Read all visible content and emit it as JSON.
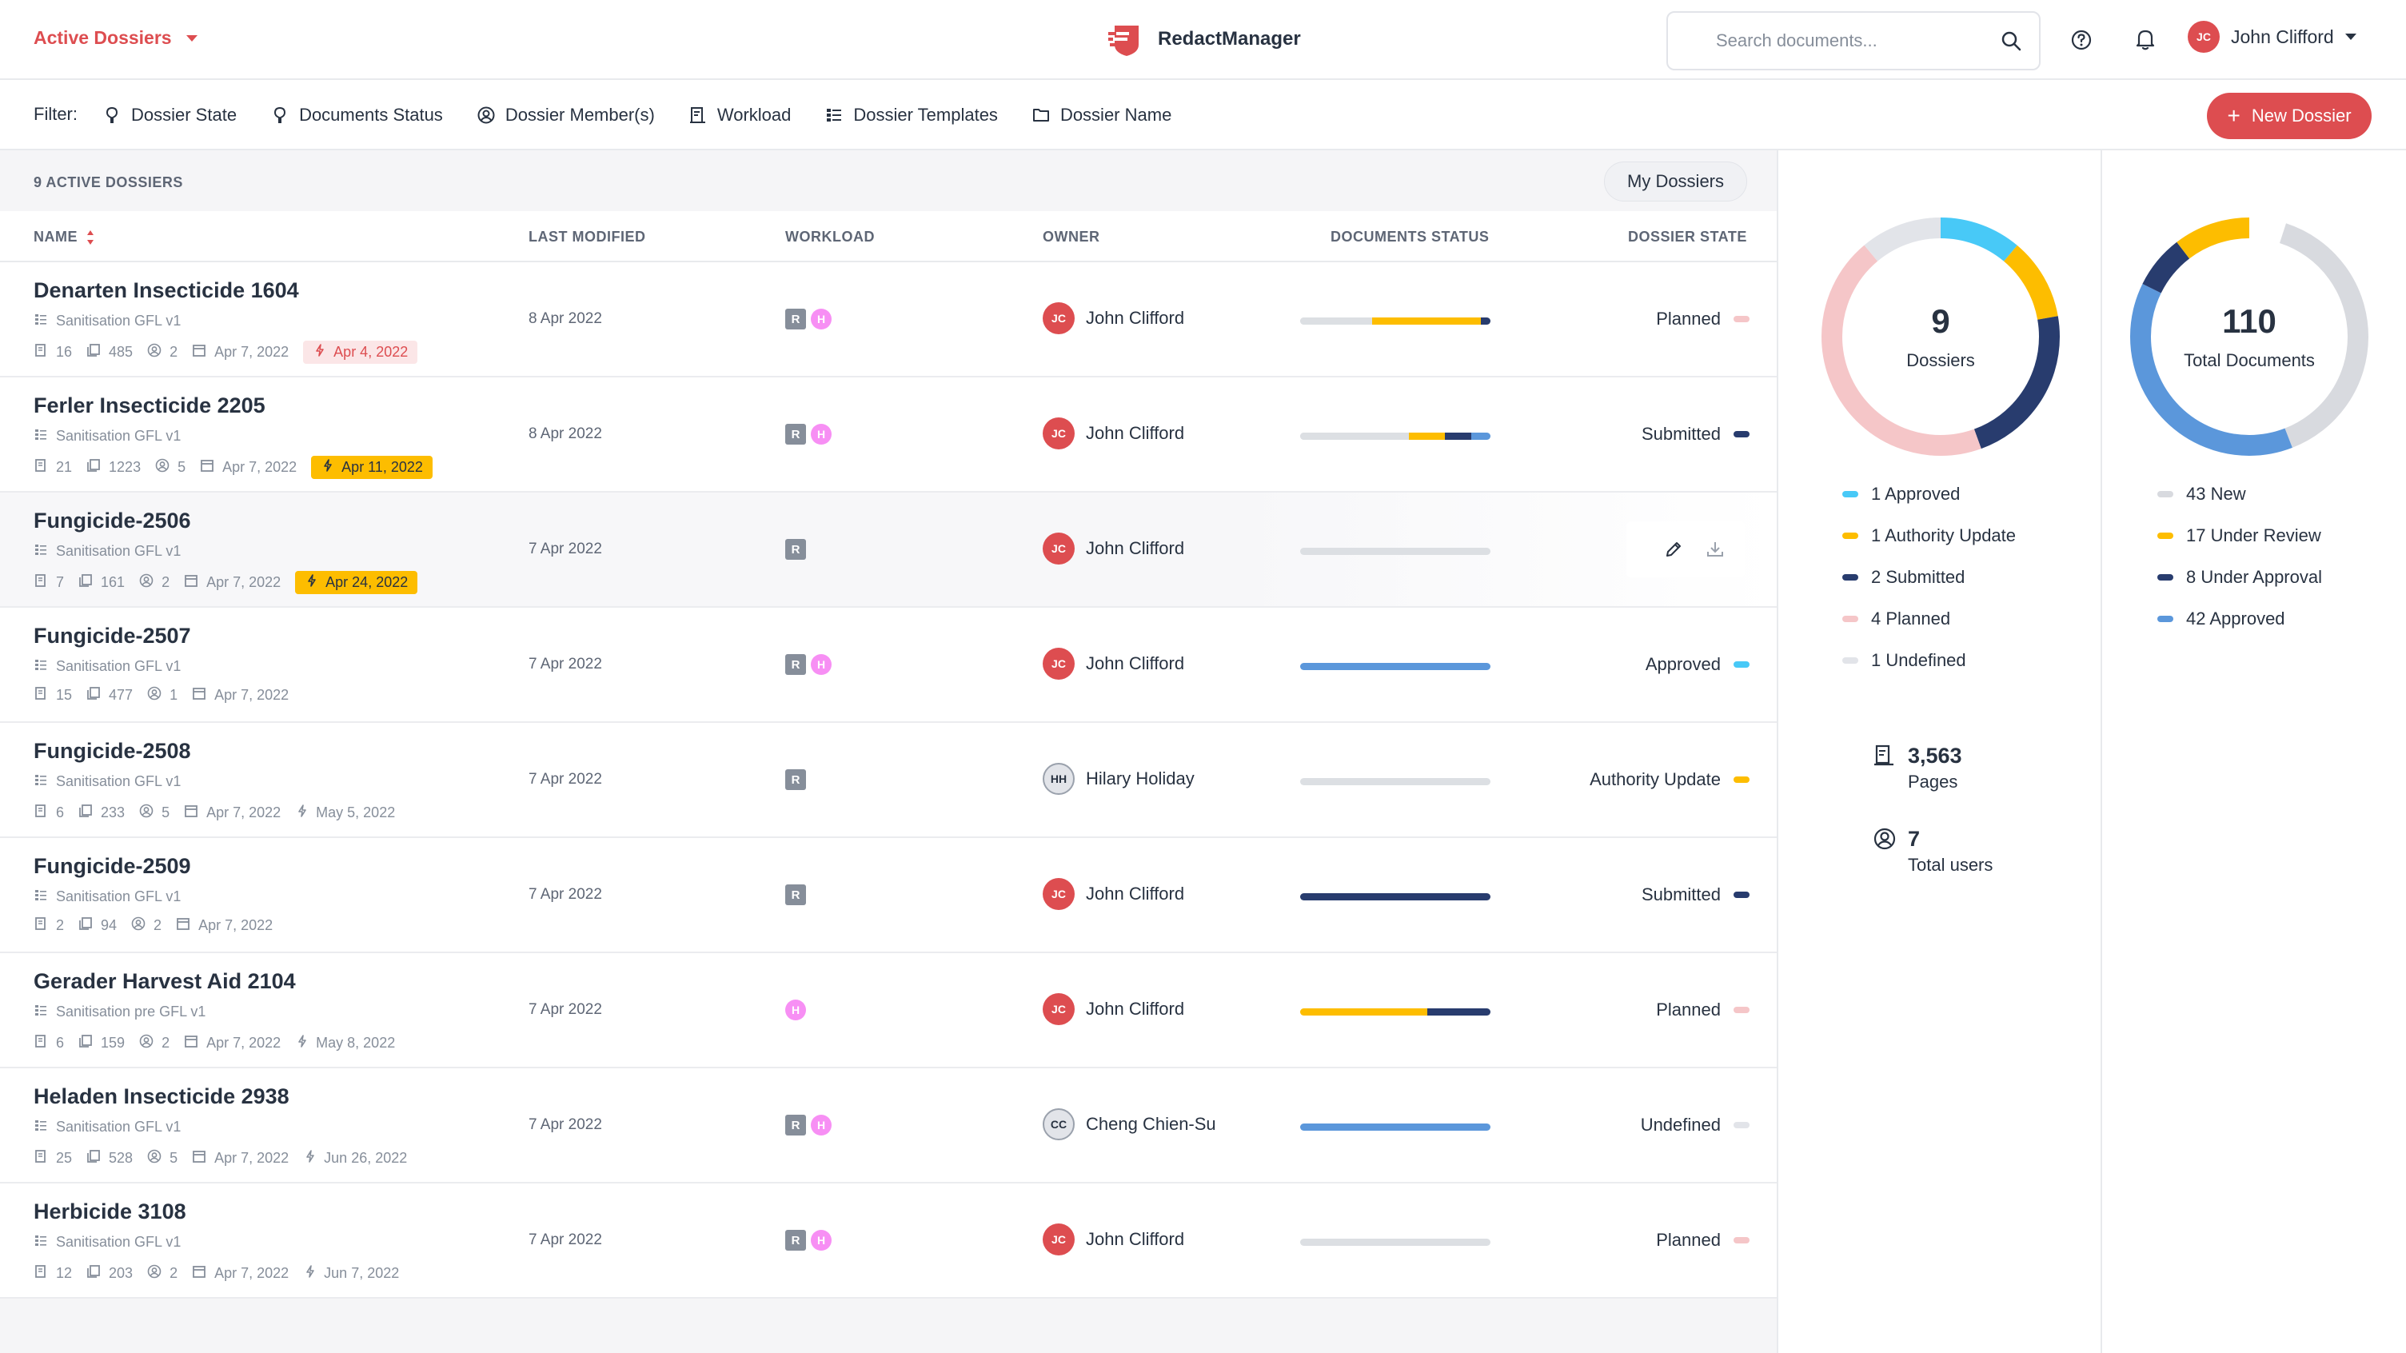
{
  "header": {
    "dossiers_menu": "Active Dossiers",
    "app_name": "RedactManager",
    "search_placeholder": "Search documents...",
    "user_initials": "JC",
    "user_name": "John Clifford"
  },
  "filter_bar": {
    "label": "Filter:",
    "filters": [
      {
        "label": "Dossier State",
        "icon": "pin-icon"
      },
      {
        "label": "Documents Status",
        "icon": "pin-icon"
      },
      {
        "label": "Dossier Member(s)",
        "icon": "user-circle-icon"
      },
      {
        "label": "Workload",
        "icon": "workload-icon"
      },
      {
        "label": "Dossier Templates",
        "icon": "template-list-icon"
      },
      {
        "label": "Dossier Name",
        "icon": "folder-icon"
      }
    ],
    "new_dossier_label": "New Dossier"
  },
  "list": {
    "count_label": "9 ACTIVE DOSSIERS",
    "my_dossiers_label": "My Dossiers",
    "columns": [
      "NAME",
      "LAST MODIFIED",
      "WORKLOAD",
      "OWNER",
      "DOCUMENTS STATUS",
      "DOSSIER STATE"
    ],
    "rows": [
      {
        "name": "Denarten Insecticide 1604",
        "template": "Sanitisation GFL v1",
        "docs": "16",
        "pages": "485",
        "members": "2",
        "created": "Apr 7, 2022",
        "due": "Apr 4, 2022",
        "due_style": "red",
        "modified": "8 Apr 2022",
        "workload": [
          "R",
          "H"
        ],
        "owner_initials": "JC",
        "owner": "John Clifford",
        "owner_style": "red",
        "doc_status": [
          {
            "color": "#dcdfe3",
            "value": 0.38
          },
          {
            "color": "#fdbd00",
            "value": 0.57
          },
          {
            "color": "#283c6e",
            "value": 0.05
          }
        ],
        "state": "Planned",
        "state_color": "#f5c6c8"
      },
      {
        "name": "Ferler Insecticide 2205",
        "template": "Sanitisation GFL v1",
        "docs": "21",
        "pages": "1223",
        "members": "5",
        "created": "Apr 7, 2022",
        "due": "Apr 11, 2022",
        "due_style": "yellow",
        "modified": "8 Apr 2022",
        "workload": [
          "R",
          "H"
        ],
        "owner_initials": "JC",
        "owner": "John Clifford",
        "owner_style": "red",
        "doc_status": [
          {
            "color": "#dcdfe3",
            "value": 0.57
          },
          {
            "color": "#fdbd00",
            "value": 0.19
          },
          {
            "color": "#283c6e",
            "value": 0.14
          },
          {
            "color": "#5b97db",
            "value": 0.1
          }
        ],
        "state": "Submitted",
        "state_color": "#283c6e"
      },
      {
        "name": "Fungicide-2506",
        "template": "Sanitisation GFL v1",
        "docs": "7",
        "pages": "161",
        "members": "2",
        "created": "Apr 7, 2022",
        "due": "Apr 24, 2022",
        "due_style": "yellow",
        "modified": "7 Apr 2022",
        "workload": [
          "R"
        ],
        "owner_initials": "JC",
        "owner": "John Clifford",
        "owner_style": "red",
        "doc_status": [
          {
            "color": "#dcdfe3",
            "value": 1.0
          }
        ],
        "state": "",
        "state_color": "",
        "hover": true
      },
      {
        "name": "Fungicide-2507",
        "template": "Sanitisation GFL v1",
        "docs": "15",
        "pages": "477",
        "members": "1",
        "created": "Apr 7, 2022",
        "due": "",
        "due_style": "",
        "modified": "7 Apr 2022",
        "workload": [
          "R",
          "H"
        ],
        "owner_initials": "JC",
        "owner": "John Clifford",
        "owner_style": "red",
        "doc_status": [
          {
            "color": "#5b97db",
            "value": 1.0
          }
        ],
        "state": "Approved",
        "state_color": "#48c9f7"
      },
      {
        "name": "Fungicide-2508",
        "template": "Sanitisation GFL v1",
        "docs": "6",
        "pages": "233",
        "members": "5",
        "created": "Apr 7, 2022",
        "due": "May 5, 2022",
        "due_style": "plain",
        "modified": "7 Apr 2022",
        "workload": [
          "R"
        ],
        "owner_initials": "HH",
        "owner": "Hilary Holiday",
        "owner_style": "neutral",
        "doc_status": [
          {
            "color": "#dcdfe3",
            "value": 1.0
          }
        ],
        "state": "Authority Update",
        "state_color": "#fdbd00"
      },
      {
        "name": "Fungicide-2509",
        "template": "Sanitisation GFL v1",
        "docs": "2",
        "pages": "94",
        "members": "2",
        "created": "Apr 7, 2022",
        "due": "",
        "due_style": "",
        "modified": "7 Apr 2022",
        "workload": [
          "R"
        ],
        "owner_initials": "JC",
        "owner": "John Clifford",
        "owner_style": "red",
        "doc_status": [
          {
            "color": "#283c6e",
            "value": 1.0
          }
        ],
        "state": "Submitted",
        "state_color": "#283c6e"
      },
      {
        "name": "Gerader Harvest Aid 2104",
        "template": "Sanitisation pre GFL v1",
        "docs": "6",
        "pages": "159",
        "members": "2",
        "created": "Apr 7, 2022",
        "due": "May 8, 2022",
        "due_style": "plain",
        "modified": "7 Apr 2022",
        "workload": [
          "H"
        ],
        "owner_initials": "JC",
        "owner": "John Clifford",
        "owner_style": "red",
        "doc_status": [
          {
            "color": "#fdbd00",
            "value": 0.67
          },
          {
            "color": "#283c6e",
            "value": 0.33
          }
        ],
        "state": "Planned",
        "state_color": "#f5c6c8"
      },
      {
        "name": "Heladen Insecticide 2938",
        "template": "Sanitisation GFL v1",
        "docs": "25",
        "pages": "528",
        "members": "5",
        "created": "Apr 7, 2022",
        "due": "Jun 26, 2022",
        "due_style": "plain",
        "modified": "7 Apr 2022",
        "workload": [
          "R",
          "H"
        ],
        "owner_initials": "CC",
        "owner": "Cheng Chien-Su",
        "owner_style": "neutral",
        "doc_status": [
          {
            "color": "#5b97db",
            "value": 1.0
          }
        ],
        "state": "Undefined",
        "state_color": "#e2e4e9"
      },
      {
        "name": "Herbicide 3108",
        "template": "Sanitisation GFL v1",
        "docs": "12",
        "pages": "203",
        "members": "2",
        "created": "Apr 7, 2022",
        "due": "Jun 7, 2022",
        "due_style": "plain",
        "modified": "7 Apr 2022",
        "workload": [
          "R",
          "H"
        ],
        "owner_initials": "JC",
        "owner": "John Clifford",
        "owner_style": "red",
        "doc_status": [
          {
            "color": "#dcdfe3",
            "value": 1.0
          }
        ],
        "state": "Planned",
        "state_color": "#f5c6c8"
      }
    ]
  },
  "stats": {
    "dossiers": {
      "total": "9",
      "label": "Dossiers",
      "legend": [
        {
          "label": "1 Approved",
          "value": 1,
          "color": "#48c9f7"
        },
        {
          "label": "1 Authority Update",
          "value": 1,
          "color": "#fdbd00"
        },
        {
          "label": "2 Submitted",
          "value": 2,
          "color": "#283c6e"
        },
        {
          "label": "4 Planned",
          "value": 4,
          "color": "#f5c6c8"
        },
        {
          "label": "1 Undefined",
          "value": 1,
          "color": "#e2e4e9"
        }
      ]
    },
    "documents": {
      "total": "110",
      "label": "Total Documents",
      "legend": [
        {
          "label": "43 New",
          "value": 43,
          "color": "#d8dadf"
        },
        {
          "label": "17 Under Review",
          "value": 17,
          "color": "#fdbd00"
        },
        {
          "label": "8 Under Approval",
          "value": 8,
          "color": "#283c6e"
        },
        {
          "label": "42 Approved",
          "value": 42,
          "color": "#5b97db"
        }
      ]
    },
    "pages_value": "3,563",
    "pages_label": "Pages",
    "users_value": "7",
    "users_label": "Total users"
  },
  "colors": {
    "accent": "#dd4d50",
    "text": "#283241",
    "muted": "#868e9a"
  }
}
